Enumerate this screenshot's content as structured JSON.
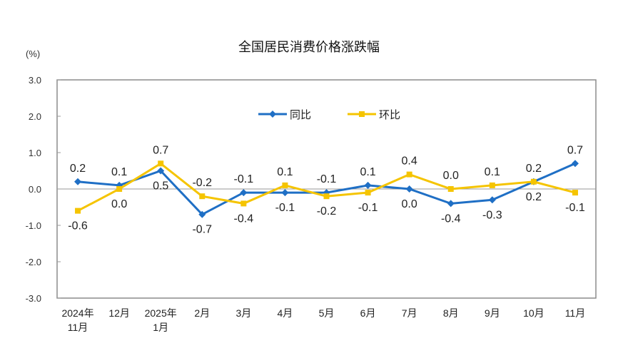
{
  "chart_data": {
    "type": "line",
    "title": "全国居民消费价格涨跌幅",
    "ylabel": "(%)",
    "ylim": [
      -3.0,
      3.0
    ],
    "yticks": [
      "3.0",
      "2.0",
      "1.0",
      "0.0",
      "-1.0",
      "-2.0",
      "-3.0"
    ],
    "categories": [
      [
        "2024年",
        "11月"
      ],
      [
        "12月"
      ],
      [
        "2025年",
        "1月"
      ],
      [
        "2月"
      ],
      [
        "3月"
      ],
      [
        "4月"
      ],
      [
        "5月"
      ],
      [
        "6月"
      ],
      [
        "7月"
      ],
      [
        "8月"
      ],
      [
        "9月"
      ],
      [
        "10月"
      ],
      [
        "11月"
      ]
    ],
    "grid": false,
    "legend_position": "top-center",
    "series": [
      {
        "name": "同比",
        "color": "#1f6fc5",
        "marker": "diamond",
        "values": [
          0.2,
          0.1,
          0.5,
          -0.7,
          -0.1,
          -0.1,
          -0.1,
          0.1,
          0.0,
          -0.4,
          -0.3,
          0.2,
          0.7
        ],
        "label_pos": [
          "above",
          "above",
          "below",
          "below",
          "above",
          "below",
          "above",
          "above",
          "below",
          "below",
          "below",
          "below",
          "above"
        ]
      },
      {
        "name": "环比",
        "color": "#f5c400",
        "marker": "square",
        "values": [
          -0.6,
          0.0,
          0.7,
          -0.2,
          -0.4,
          0.1,
          -0.2,
          -0.1,
          0.4,
          0.0,
          0.1,
          0.2,
          -0.1
        ],
        "label_pos": [
          "below",
          "below",
          "above",
          "above",
          "below",
          "above",
          "below",
          "below",
          "above",
          "above",
          "above",
          "above",
          "below"
        ]
      }
    ]
  }
}
